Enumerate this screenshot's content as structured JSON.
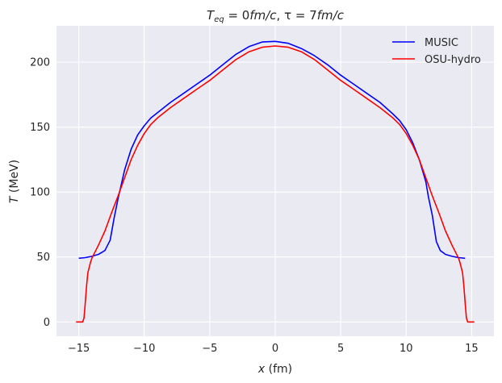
{
  "chart_data": {
    "type": "line",
    "title": "T_eq = 0fm/c, τ = 7fm/c",
    "title_parts": [
      "T",
      "eq",
      " = 0",
      "fm/c",
      ", τ = 7",
      "fm/c"
    ],
    "xlabel": "x (fm)",
    "xlabel_parts": [
      "x",
      " (fm)"
    ],
    "ylabel": "T (MeV)",
    "ylabel_parts": [
      "T",
      " (MeV)"
    ],
    "xlim": [
      -16.7,
      16.7
    ],
    "ylim": [
      -11,
      228
    ],
    "xticks": [
      -15,
      -10,
      -5,
      0,
      5,
      10,
      15
    ],
    "xtick_labels": [
      "−15",
      "−10",
      "−5",
      "0",
      "5",
      "10",
      "15"
    ],
    "yticks": [
      0,
      50,
      100,
      150,
      200
    ],
    "ytick_labels": [
      "0",
      "50",
      "100",
      "150",
      "200"
    ],
    "grid": true,
    "background": "#eaeaf2",
    "legend_position": "top-right",
    "series": [
      {
        "name": "MUSIC",
        "color": "#0000ff",
        "x": [
          -15.0,
          -14.5,
          -14.0,
          -13.5,
          -13.0,
          -12.6,
          -12.3,
          -12.0,
          -11.7,
          -11.5,
          -11.0,
          -10.5,
          -10.0,
          -9.5,
          -9.0,
          -8.0,
          -7.0,
          -6.0,
          -5.0,
          -4.0,
          -3.0,
          -2.0,
          -1.0,
          0.0,
          1.0,
          2.0,
          3.0,
          4.0,
          5.0,
          6.0,
          7.0,
          8.0,
          9.0,
          9.5,
          10.0,
          10.5,
          11.0,
          11.5,
          11.7,
          12.0,
          12.3,
          12.6,
          13.0,
          13.5,
          14.0,
          14.5
        ],
        "y": [
          49,
          49.5,
          50.5,
          52,
          55,
          63,
          80,
          95,
          108,
          117,
          133,
          144,
          151,
          157,
          161,
          169,
          176,
          183,
          190,
          198,
          206,
          212,
          215.5,
          216,
          214.5,
          210.5,
          205,
          198,
          190,
          183,
          176,
          169,
          160,
          155,
          148,
          138,
          125,
          108,
          96,
          82,
          62,
          55,
          52,
          50.5,
          49.5,
          49
        ]
      },
      {
        "name": "OSU-hydro",
        "color": "#ff0000",
        "x": [
          -15.2,
          -14.7,
          -14.6,
          -14.5,
          -14.4,
          -14.3,
          -14.1,
          -14.0,
          -13.5,
          -13.0,
          -12.5,
          -12.0,
          -11.5,
          -11.0,
          -10.5,
          -10.0,
          -9.5,
          -9.0,
          -8.0,
          -7.0,
          -6.0,
          -5.0,
          -4.0,
          -3.0,
          -2.0,
          -1.0,
          0.0,
          1.0,
          2.0,
          3.0,
          4.0,
          5.0,
          6.0,
          7.0,
          8.0,
          9.0,
          9.5,
          10.0,
          10.5,
          11.0,
          11.5,
          12.0,
          12.5,
          13.0,
          13.5,
          14.0,
          14.1,
          14.3,
          14.4,
          14.5,
          14.6,
          14.7,
          15.2
        ],
        "y": [
          0,
          0,
          3,
          15,
          28,
          38,
          46,
          49,
          59,
          70,
          84,
          97,
          111,
          125,
          136,
          145,
          152,
          157,
          165,
          172,
          179,
          186,
          194,
          202,
          208,
          211.5,
          212.5,
          211.5,
          208,
          202,
          194,
          186,
          179,
          172,
          165,
          157,
          152,
          145,
          136,
          125,
          111,
          97,
          84,
          70,
          59,
          49,
          46,
          38,
          28,
          15,
          3,
          0,
          0
        ]
      }
    ]
  }
}
